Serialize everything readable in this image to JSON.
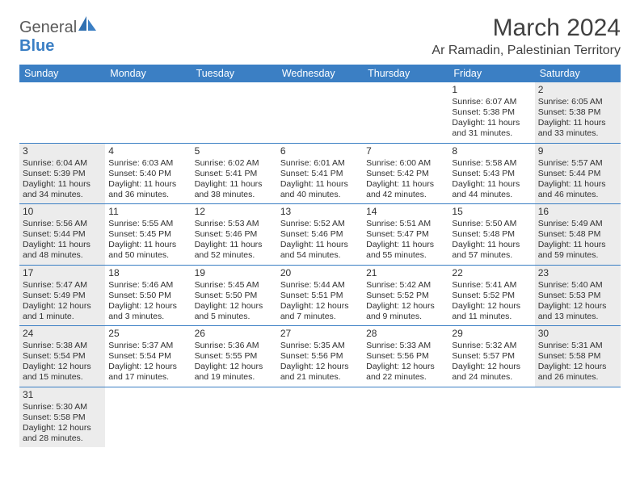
{
  "logo": {
    "text1": "General",
    "text2": "Blue"
  },
  "title": "March 2024",
  "location": "Ar Ramadin, Palestinian Territory",
  "colors": {
    "accent": "#3b7fc4",
    "shaded": "#ececec",
    "text": "#303030"
  },
  "weekdays": [
    "Sunday",
    "Monday",
    "Tuesday",
    "Wednesday",
    "Thursday",
    "Friday",
    "Saturday"
  ],
  "weeks": [
    [
      null,
      null,
      null,
      null,
      null,
      {
        "n": "1",
        "shaded": false,
        "sunrise": "Sunrise: 6:07 AM",
        "sunset": "Sunset: 5:38 PM",
        "day1": "Daylight: 11 hours",
        "day2": "and 31 minutes."
      },
      {
        "n": "2",
        "shaded": true,
        "sunrise": "Sunrise: 6:05 AM",
        "sunset": "Sunset: 5:38 PM",
        "day1": "Daylight: 11 hours",
        "day2": "and 33 minutes."
      }
    ],
    [
      {
        "n": "3",
        "shaded": true,
        "sunrise": "Sunrise: 6:04 AM",
        "sunset": "Sunset: 5:39 PM",
        "day1": "Daylight: 11 hours",
        "day2": "and 34 minutes."
      },
      {
        "n": "4",
        "shaded": false,
        "sunrise": "Sunrise: 6:03 AM",
        "sunset": "Sunset: 5:40 PM",
        "day1": "Daylight: 11 hours",
        "day2": "and 36 minutes."
      },
      {
        "n": "5",
        "shaded": false,
        "sunrise": "Sunrise: 6:02 AM",
        "sunset": "Sunset: 5:41 PM",
        "day1": "Daylight: 11 hours",
        "day2": "and 38 minutes."
      },
      {
        "n": "6",
        "shaded": false,
        "sunrise": "Sunrise: 6:01 AM",
        "sunset": "Sunset: 5:41 PM",
        "day1": "Daylight: 11 hours",
        "day2": "and 40 minutes."
      },
      {
        "n": "7",
        "shaded": false,
        "sunrise": "Sunrise: 6:00 AM",
        "sunset": "Sunset: 5:42 PM",
        "day1": "Daylight: 11 hours",
        "day2": "and 42 minutes."
      },
      {
        "n": "8",
        "shaded": false,
        "sunrise": "Sunrise: 5:58 AM",
        "sunset": "Sunset: 5:43 PM",
        "day1": "Daylight: 11 hours",
        "day2": "and 44 minutes."
      },
      {
        "n": "9",
        "shaded": true,
        "sunrise": "Sunrise: 5:57 AM",
        "sunset": "Sunset: 5:44 PM",
        "day1": "Daylight: 11 hours",
        "day2": "and 46 minutes."
      }
    ],
    [
      {
        "n": "10",
        "shaded": true,
        "sunrise": "Sunrise: 5:56 AM",
        "sunset": "Sunset: 5:44 PM",
        "day1": "Daylight: 11 hours",
        "day2": "and 48 minutes."
      },
      {
        "n": "11",
        "shaded": false,
        "sunrise": "Sunrise: 5:55 AM",
        "sunset": "Sunset: 5:45 PM",
        "day1": "Daylight: 11 hours",
        "day2": "and 50 minutes."
      },
      {
        "n": "12",
        "shaded": false,
        "sunrise": "Sunrise: 5:53 AM",
        "sunset": "Sunset: 5:46 PM",
        "day1": "Daylight: 11 hours",
        "day2": "and 52 minutes."
      },
      {
        "n": "13",
        "shaded": false,
        "sunrise": "Sunrise: 5:52 AM",
        "sunset": "Sunset: 5:46 PM",
        "day1": "Daylight: 11 hours",
        "day2": "and 54 minutes."
      },
      {
        "n": "14",
        "shaded": false,
        "sunrise": "Sunrise: 5:51 AM",
        "sunset": "Sunset: 5:47 PM",
        "day1": "Daylight: 11 hours",
        "day2": "and 55 minutes."
      },
      {
        "n": "15",
        "shaded": false,
        "sunrise": "Sunrise: 5:50 AM",
        "sunset": "Sunset: 5:48 PM",
        "day1": "Daylight: 11 hours",
        "day2": "and 57 minutes."
      },
      {
        "n": "16",
        "shaded": true,
        "sunrise": "Sunrise: 5:49 AM",
        "sunset": "Sunset: 5:48 PM",
        "day1": "Daylight: 11 hours",
        "day2": "and 59 minutes."
      }
    ],
    [
      {
        "n": "17",
        "shaded": true,
        "sunrise": "Sunrise: 5:47 AM",
        "sunset": "Sunset: 5:49 PM",
        "day1": "Daylight: 12 hours",
        "day2": "and 1 minute."
      },
      {
        "n": "18",
        "shaded": false,
        "sunrise": "Sunrise: 5:46 AM",
        "sunset": "Sunset: 5:50 PM",
        "day1": "Daylight: 12 hours",
        "day2": "and 3 minutes."
      },
      {
        "n": "19",
        "shaded": false,
        "sunrise": "Sunrise: 5:45 AM",
        "sunset": "Sunset: 5:50 PM",
        "day1": "Daylight: 12 hours",
        "day2": "and 5 minutes."
      },
      {
        "n": "20",
        "shaded": false,
        "sunrise": "Sunrise: 5:44 AM",
        "sunset": "Sunset: 5:51 PM",
        "day1": "Daylight: 12 hours",
        "day2": "and 7 minutes."
      },
      {
        "n": "21",
        "shaded": false,
        "sunrise": "Sunrise: 5:42 AM",
        "sunset": "Sunset: 5:52 PM",
        "day1": "Daylight: 12 hours",
        "day2": "and 9 minutes."
      },
      {
        "n": "22",
        "shaded": false,
        "sunrise": "Sunrise: 5:41 AM",
        "sunset": "Sunset: 5:52 PM",
        "day1": "Daylight: 12 hours",
        "day2": "and 11 minutes."
      },
      {
        "n": "23",
        "shaded": true,
        "sunrise": "Sunrise: 5:40 AM",
        "sunset": "Sunset: 5:53 PM",
        "day1": "Daylight: 12 hours",
        "day2": "and 13 minutes."
      }
    ],
    [
      {
        "n": "24",
        "shaded": true,
        "sunrise": "Sunrise: 5:38 AM",
        "sunset": "Sunset: 5:54 PM",
        "day1": "Daylight: 12 hours",
        "day2": "and 15 minutes."
      },
      {
        "n": "25",
        "shaded": false,
        "sunrise": "Sunrise: 5:37 AM",
        "sunset": "Sunset: 5:54 PM",
        "day1": "Daylight: 12 hours",
        "day2": "and 17 minutes."
      },
      {
        "n": "26",
        "shaded": false,
        "sunrise": "Sunrise: 5:36 AM",
        "sunset": "Sunset: 5:55 PM",
        "day1": "Daylight: 12 hours",
        "day2": "and 19 minutes."
      },
      {
        "n": "27",
        "shaded": false,
        "sunrise": "Sunrise: 5:35 AM",
        "sunset": "Sunset: 5:56 PM",
        "day1": "Daylight: 12 hours",
        "day2": "and 21 minutes."
      },
      {
        "n": "28",
        "shaded": false,
        "sunrise": "Sunrise: 5:33 AM",
        "sunset": "Sunset: 5:56 PM",
        "day1": "Daylight: 12 hours",
        "day2": "and 22 minutes."
      },
      {
        "n": "29",
        "shaded": false,
        "sunrise": "Sunrise: 5:32 AM",
        "sunset": "Sunset: 5:57 PM",
        "day1": "Daylight: 12 hours",
        "day2": "and 24 minutes."
      },
      {
        "n": "30",
        "shaded": true,
        "sunrise": "Sunrise: 5:31 AM",
        "sunset": "Sunset: 5:58 PM",
        "day1": "Daylight: 12 hours",
        "day2": "and 26 minutes."
      }
    ],
    [
      {
        "n": "31",
        "shaded": true,
        "sunrise": "Sunrise: 5:30 AM",
        "sunset": "Sunset: 5:58 PM",
        "day1": "Daylight: 12 hours",
        "day2": "and 28 minutes."
      },
      null,
      null,
      null,
      null,
      null,
      null
    ]
  ]
}
